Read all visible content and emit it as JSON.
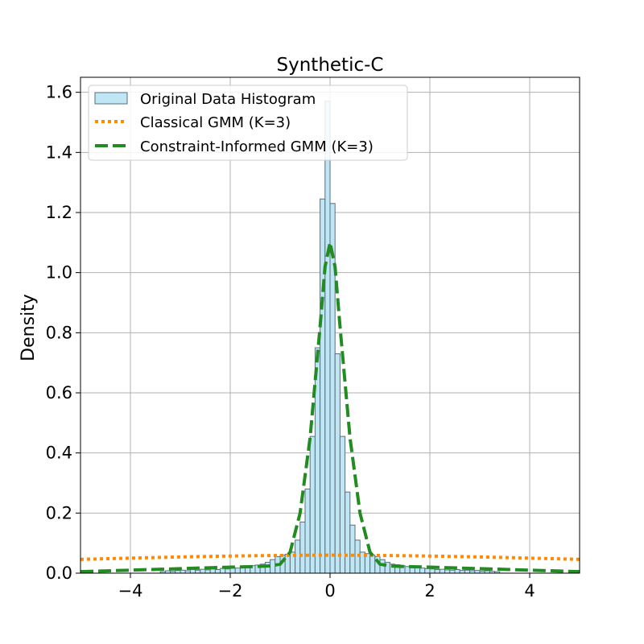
{
  "chart_data": {
    "type": "histogram-with-density-curves",
    "title": "Synthetic-C",
    "xlabel": "",
    "ylabel": "Density",
    "xlim": [
      -5,
      5
    ],
    "ylim": [
      0,
      1.65
    ],
    "xticks": [
      -4,
      -2,
      0,
      2,
      4
    ],
    "xtick_labels": [
      "−4",
      "−2",
      "0",
      "2",
      "4"
    ],
    "yticks": [
      0.0,
      0.2,
      0.4,
      0.6,
      0.8,
      1.0,
      1.2,
      1.4,
      1.6
    ],
    "ytick_labels": [
      "0.0",
      "0.2",
      "0.4",
      "0.6",
      "0.8",
      "1.0",
      "1.2",
      "1.4",
      "1.6"
    ],
    "grid": true,
    "legend_placement": "upper-left",
    "histogram": {
      "name": "Original Data Histogram",
      "color": "#bfe6f5",
      "edge_color": "#5a6e7a",
      "bins": [
        {
          "x0": -5.0,
          "x1": -4.9,
          "y": 0.0
        },
        {
          "x0": -3.4,
          "x1": -3.3,
          "y": 0.005
        },
        {
          "x0": -3.3,
          "x1": -3.2,
          "y": 0.008
        },
        {
          "x0": -3.2,
          "x1": -3.1,
          "y": 0.006
        },
        {
          "x0": -3.1,
          "x1": -3.0,
          "y": 0.009
        },
        {
          "x0": -3.0,
          "x1": -2.9,
          "y": 0.01
        },
        {
          "x0": -2.9,
          "x1": -2.8,
          "y": 0.008
        },
        {
          "x0": -2.8,
          "x1": -2.7,
          "y": 0.012
        },
        {
          "x0": -2.7,
          "x1": -2.6,
          "y": 0.01
        },
        {
          "x0": -2.6,
          "x1": -2.5,
          "y": 0.013
        },
        {
          "x0": -2.5,
          "x1": -2.4,
          "y": 0.011
        },
        {
          "x0": -2.4,
          "x1": -2.3,
          "y": 0.014
        },
        {
          "x0": -2.3,
          "x1": -2.2,
          "y": 0.012
        },
        {
          "x0": -2.2,
          "x1": -2.1,
          "y": 0.016
        },
        {
          "x0": -2.1,
          "x1": -2.0,
          "y": 0.014
        },
        {
          "x0": -2.0,
          "x1": -1.9,
          "y": 0.018
        },
        {
          "x0": -1.9,
          "x1": -1.8,
          "y": 0.017
        },
        {
          "x0": -1.8,
          "x1": -1.7,
          "y": 0.02
        },
        {
          "x0": -1.7,
          "x1": -1.6,
          "y": 0.022
        },
        {
          "x0": -1.6,
          "x1": -1.5,
          "y": 0.025
        },
        {
          "x0": -1.5,
          "x1": -1.4,
          "y": 0.027
        },
        {
          "x0": -1.4,
          "x1": -1.3,
          "y": 0.03
        },
        {
          "x0": -1.3,
          "x1": -1.2,
          "y": 0.036
        },
        {
          "x0": -1.2,
          "x1": -1.1,
          "y": 0.045
        },
        {
          "x0": -1.1,
          "x1": -1.0,
          "y": 0.055
        },
        {
          "x0": -1.0,
          "x1": -0.9,
          "y": 0.06
        },
        {
          "x0": -0.9,
          "x1": -0.8,
          "y": 0.063
        },
        {
          "x0": -0.8,
          "x1": -0.7,
          "y": 0.07
        },
        {
          "x0": -0.7,
          "x1": -0.6,
          "y": 0.11
        },
        {
          "x0": -0.6,
          "x1": -0.5,
          "y": 0.17
        },
        {
          "x0": -0.5,
          "x1": -0.4,
          "y": 0.28
        },
        {
          "x0": -0.4,
          "x1": -0.3,
          "y": 0.455
        },
        {
          "x0": -0.3,
          "x1": -0.2,
          "y": 0.75
        },
        {
          "x0": -0.2,
          "x1": -0.1,
          "y": 1.245
        },
        {
          "x0": -0.1,
          "x1": 0.0,
          "y": 1.57
        },
        {
          "x0": 0.0,
          "x1": 0.1,
          "y": 1.23
        },
        {
          "x0": 0.1,
          "x1": 0.2,
          "y": 0.73
        },
        {
          "x0": 0.2,
          "x1": 0.3,
          "y": 0.455
        },
        {
          "x0": 0.3,
          "x1": 0.4,
          "y": 0.27
        },
        {
          "x0": 0.4,
          "x1": 0.5,
          "y": 0.16
        },
        {
          "x0": 0.5,
          "x1": 0.6,
          "y": 0.11
        },
        {
          "x0": 0.6,
          "x1": 0.7,
          "y": 0.07
        },
        {
          "x0": 0.7,
          "x1": 0.8,
          "y": 0.065
        },
        {
          "x0": 0.8,
          "x1": 0.9,
          "y": 0.06
        },
        {
          "x0": 0.9,
          "x1": 1.0,
          "y": 0.055
        },
        {
          "x0": 1.0,
          "x1": 1.1,
          "y": 0.045
        },
        {
          "x0": 1.1,
          "x1": 1.2,
          "y": 0.036
        },
        {
          "x0": 1.2,
          "x1": 1.3,
          "y": 0.03
        },
        {
          "x0": 1.3,
          "x1": 1.4,
          "y": 0.028
        },
        {
          "x0": 1.4,
          "x1": 1.5,
          "y": 0.025
        },
        {
          "x0": 1.5,
          "x1": 1.6,
          "y": 0.022
        },
        {
          "x0": 1.6,
          "x1": 1.7,
          "y": 0.02
        },
        {
          "x0": 1.7,
          "x1": 1.8,
          "y": 0.018
        },
        {
          "x0": 1.8,
          "x1": 1.9,
          "y": 0.017
        },
        {
          "x0": 1.9,
          "x1": 2.0,
          "y": 0.015
        },
        {
          "x0": 2.0,
          "x1": 2.1,
          "y": 0.014
        },
        {
          "x0": 2.1,
          "x1": 2.2,
          "y": 0.012
        },
        {
          "x0": 2.2,
          "x1": 2.3,
          "y": 0.013
        },
        {
          "x0": 2.3,
          "x1": 2.4,
          "y": 0.011
        },
        {
          "x0": 2.4,
          "x1": 2.5,
          "y": 0.01
        },
        {
          "x0": 2.5,
          "x1": 2.6,
          "y": 0.012
        },
        {
          "x0": 2.6,
          "x1": 2.7,
          "y": 0.009
        },
        {
          "x0": 2.7,
          "x1": 2.8,
          "y": 0.01
        },
        {
          "x0": 2.8,
          "x1": 2.9,
          "y": 0.008
        },
        {
          "x0": 2.9,
          "x1": 3.0,
          "y": 0.009
        },
        {
          "x0": 3.0,
          "x1": 3.1,
          "y": 0.007
        },
        {
          "x0": 3.1,
          "x1": 3.2,
          "y": 0.008
        },
        {
          "x0": 3.2,
          "x1": 3.3,
          "y": 0.006
        },
        {
          "x0": 3.3,
          "x1": 3.4,
          "y": 0.005
        }
      ]
    },
    "series": [
      {
        "name": "Classical GMM (K=3)",
        "style": "dotted",
        "color": "#ff8c00",
        "x": [
          -5,
          -4,
          -3,
          -2,
          -1,
          0,
          1,
          2,
          3,
          4,
          5
        ],
        "y": [
          0.046,
          0.05,
          0.054,
          0.057,
          0.059,
          0.06,
          0.059,
          0.057,
          0.054,
          0.05,
          0.046
        ]
      },
      {
        "name": "Constraint-Informed GMM (K=3)",
        "style": "dashed",
        "color": "#228b22",
        "x": [
          -5,
          -4,
          -3,
          -2,
          -1.5,
          -1.2,
          -1.0,
          -0.8,
          -0.6,
          -0.4,
          -0.2,
          -0.1,
          0.0,
          0.1,
          0.2,
          0.4,
          0.6,
          0.8,
          1.0,
          1.2,
          1.5,
          2,
          3,
          4,
          5
        ],
        "y": [
          0.005,
          0.01,
          0.015,
          0.02,
          0.022,
          0.024,
          0.03,
          0.07,
          0.2,
          0.45,
          0.82,
          1.02,
          1.1,
          1.02,
          0.82,
          0.45,
          0.2,
          0.07,
          0.03,
          0.024,
          0.022,
          0.02,
          0.015,
          0.01,
          0.005
        ]
      }
    ]
  }
}
